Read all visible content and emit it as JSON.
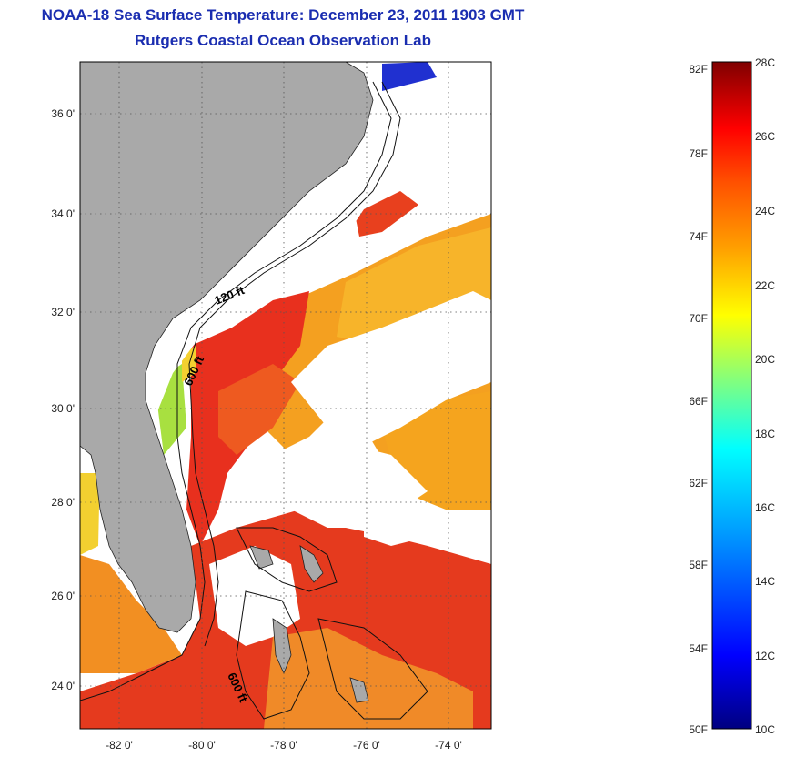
{
  "header": {
    "title": "NOAA-18 Sea Surface Temperature:  December 23, 2011 1903 GMT",
    "subtitle": "Rutgers Coastal Ocean Observation Lab"
  },
  "map": {
    "lat_labels": [
      "36 0'",
      "34 0'",
      "32 0'",
      "30 0'",
      "28 0'",
      "26 0'",
      "24 0'"
    ],
    "lon_labels": [
      "-82 0'",
      "-80 0'",
      "-78 0'",
      "-76 0'",
      "-74 0'"
    ],
    "bathymetry_labels": [
      "120 ft",
      "600 ft",
      "600 ft"
    ]
  },
  "colorbar": {
    "f_labels": [
      "82F",
      "78F",
      "74F",
      "70F",
      "66F",
      "62F",
      "58F",
      "54F",
      "50F"
    ],
    "c_labels": [
      "28C",
      "26C",
      "24C",
      "22C",
      "20C",
      "18C",
      "16C",
      "14C",
      "12C",
      "10C"
    ]
  },
  "colors": {
    "title": "#1a2db0",
    "land": "#a9a9a9",
    "cloud": "#ffffff",
    "warm": "#e03020",
    "mid": "#f08020"
  }
}
